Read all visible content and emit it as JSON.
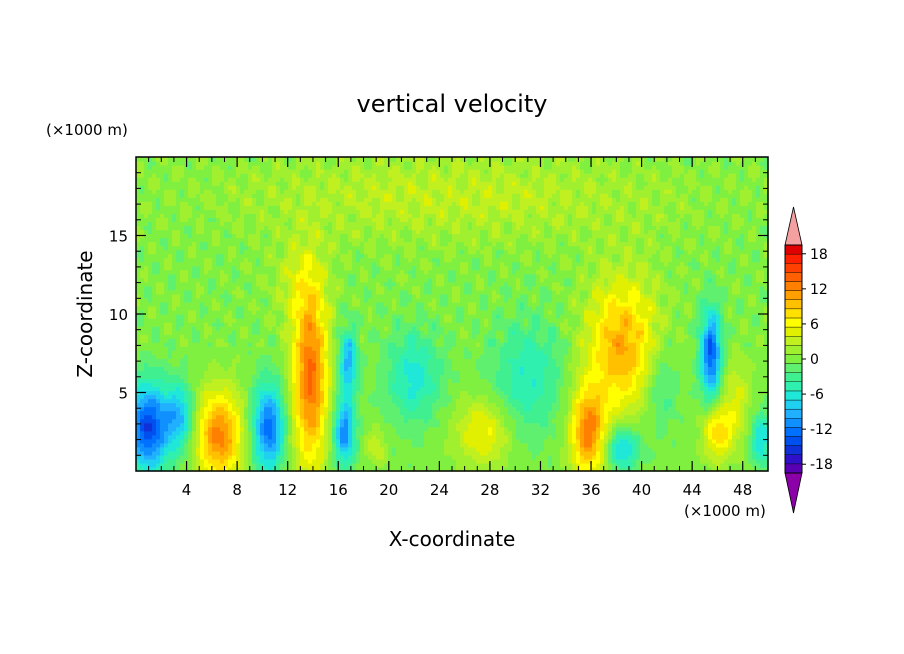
{
  "chart_data": {
    "type": "heatmap",
    "title": "vertical velocity",
    "xlabel": "X-coordinate",
    "ylabel": "Z-coordinate",
    "x_unit": "(×1000 m)",
    "y_unit": "(×1000 m)",
    "xlim": [
      0,
      50
    ],
    "ylim": [
      0,
      20
    ],
    "x_ticks": [
      4,
      8,
      12,
      16,
      20,
      24,
      28,
      32,
      36,
      40,
      44,
      48
    ],
    "y_ticks": [
      5,
      10,
      15
    ],
    "colorbar": {
      "levels": [
        -21,
        -19.5,
        -18,
        -16.5,
        -15,
        -13.5,
        -12,
        -10.5,
        -9,
        -7.5,
        -6,
        -4.5,
        -3,
        -1.5,
        0,
        1.5,
        3,
        4.5,
        6,
        7.5,
        9,
        10.5,
        12,
        13.5,
        15,
        16.5,
        18,
        19.5,
        21
      ],
      "tick_labels": [
        "18",
        "12",
        "6",
        "0",
        "-6",
        "-12",
        "-18"
      ],
      "tick_values": [
        18,
        12,
        6,
        0,
        -6,
        -12,
        -18
      ],
      "colors": [
        "#8000a0",
        "#5a00b4",
        "#3010c8",
        "#1030d8",
        "#0050f0",
        "#0070ff",
        "#1090ff",
        "#20b0ff",
        "#20d0f0",
        "#20e8d8",
        "#30f0b0",
        "#40f090",
        "#60f070",
        "#80f040",
        "#a0f030",
        "#c0f020",
        "#e0f000",
        "#ffff00",
        "#ffe000",
        "#ffc000",
        "#ffa000",
        "#ff8000",
        "#ff6000",
        "#ff4000",
        "#ff2000",
        "#e00000",
        "#f0a0a0"
      ],
      "over_color": "#f4a0a0",
      "under_color": "#8c00a8"
    },
    "features": [
      {
        "x": 1.0,
        "z": 2.8,
        "sx": 1.2,
        "sz": 2.0,
        "w": -14
      },
      {
        "x": 3.5,
        "z": 3.5,
        "sx": 0.8,
        "sz": 1.5,
        "w": -8
      },
      {
        "x": 6.6,
        "z": 2.3,
        "sx": 1.3,
        "sz": 2.0,
        "w": 12
      },
      {
        "x": 10.5,
        "z": 2.8,
        "sx": 0.9,
        "sz": 2.0,
        "w": -12
      },
      {
        "x": 13.8,
        "z": 6.0,
        "sx": 1.0,
        "sz": 4.0,
        "w": 13
      },
      {
        "x": 13.0,
        "z": 12.0,
        "sx": 1.5,
        "sz": 2.0,
        "w": 3
      },
      {
        "x": 16.5,
        "z": 2.5,
        "sx": 0.6,
        "sz": 1.5,
        "w": -11
      },
      {
        "x": 16.8,
        "z": 7.0,
        "sx": 0.5,
        "sz": 1.5,
        "w": -9
      },
      {
        "x": 19.0,
        "z": 1.6,
        "sx": 0.5,
        "sz": 0.8,
        "w": 4
      },
      {
        "x": 22.0,
        "z": 6.0,
        "sx": 1.5,
        "sz": 2.0,
        "w": -6
      },
      {
        "x": 27.5,
        "z": 2.5,
        "sx": 1.5,
        "sz": 1.5,
        "w": 6
      },
      {
        "x": 31.0,
        "z": 6.0,
        "sx": 2.0,
        "sz": 2.5,
        "w": -5
      },
      {
        "x": 35.8,
        "z": 2.5,
        "sx": 1.0,
        "sz": 2.0,
        "w": 12
      },
      {
        "x": 38.5,
        "z": 8.0,
        "sx": 2.0,
        "sz": 3.0,
        "w": 10
      },
      {
        "x": 38.5,
        "z": 1.5,
        "sx": 1.0,
        "sz": 1.0,
        "w": -8
      },
      {
        "x": 41.5,
        "z": 5.5,
        "sx": 1.0,
        "sz": 2.0,
        "w": -4
      },
      {
        "x": 45.5,
        "z": 7.5,
        "sx": 0.6,
        "sz": 2.0,
        "w": -13
      },
      {
        "x": 46.0,
        "z": 2.5,
        "sx": 0.8,
        "sz": 1.2,
        "w": 8
      },
      {
        "x": 47.5,
        "z": 4.5,
        "sx": 0.8,
        "sz": 2.0,
        "w": 4
      },
      {
        "x": 49.5,
        "z": 2.0,
        "sx": 0.6,
        "sz": 1.2,
        "w": -7
      },
      {
        "x": 25.0,
        "z": 17.5,
        "sx": 12.0,
        "sz": 2.0,
        "w": 3
      }
    ]
  }
}
